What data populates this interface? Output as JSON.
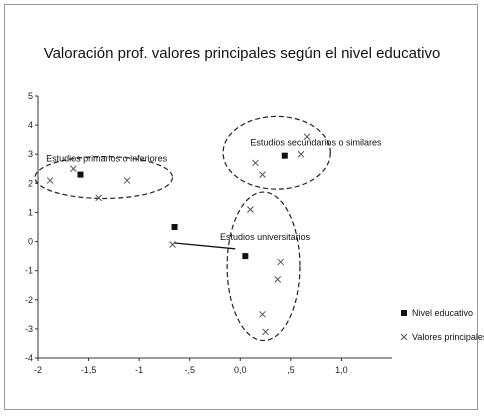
{
  "chart_data": {
    "type": "scatter",
    "title": "Valoración prof. valores principales según el nivel educativo",
    "xlabel": "",
    "ylabel": "",
    "xlim": [
      -2,
      1.5
    ],
    "ylim": [
      -4,
      5
    ],
    "x_ticks": [
      "-2",
      "-1,5",
      "-1",
      "-,5",
      "0,0",
      ",5",
      "1,0"
    ],
    "y_ticks": [
      "5",
      "4",
      "3",
      "2",
      "1",
      "0",
      "-1",
      "-2",
      "-3",
      "-4"
    ],
    "grid": false,
    "legend_position": "right",
    "series": [
      {
        "name": "Nivel educativo",
        "marker": "square",
        "points": [
          {
            "x": -1.58,
            "y": 2.3
          },
          {
            "x": 0.44,
            "y": 2.95
          },
          {
            "x": 0.05,
            "y": -0.5
          },
          {
            "x": -0.65,
            "y": 0.5
          }
        ]
      },
      {
        "name": "Valores principales",
        "marker": "x",
        "points": [
          {
            "x": -1.88,
            "y": 2.1
          },
          {
            "x": -1.65,
            "y": 2.5
          },
          {
            "x": -1.4,
            "y": 1.5
          },
          {
            "x": -1.12,
            "y": 2.1
          },
          {
            "x": 0.15,
            "y": 2.7
          },
          {
            "x": 0.22,
            "y": 2.3
          },
          {
            "x": 0.66,
            "y": 3.6
          },
          {
            "x": 0.6,
            "y": 3.0
          },
          {
            "x": 0.1,
            "y": 1.1
          },
          {
            "x": 0.4,
            "y": -0.7
          },
          {
            "x": 0.37,
            "y": -1.3
          },
          {
            "x": 0.22,
            "y": -2.5
          },
          {
            "x": 0.25,
            "y": -3.1
          },
          {
            "x": -0.67,
            "y": -0.1
          }
        ]
      }
    ],
    "annotations": [
      {
        "text": "Estudios primarios o inferiores",
        "x": -1.92,
        "y": 2.75
      },
      {
        "text": "Estudios secundarios o similares",
        "x": 0.1,
        "y": 3.3
      },
      {
        "text": "Estudios universitarios",
        "x": -0.2,
        "y": 0.05
      }
    ],
    "clusters": [
      {
        "cx": -1.35,
        "cy": 2.2,
        "rx": 0.68,
        "ry": 0.72
      },
      {
        "cx": 0.36,
        "cy": 3.05,
        "rx": 0.53,
        "ry": 1.25
      },
      {
        "cx": 0.23,
        "cy": -0.85,
        "rx": 0.36,
        "ry": 2.55
      }
    ],
    "colors": {
      "marker": "#111111",
      "cross": "#555555",
      "ellipse": "#222222",
      "frame": "#9a9a9a"
    }
  }
}
